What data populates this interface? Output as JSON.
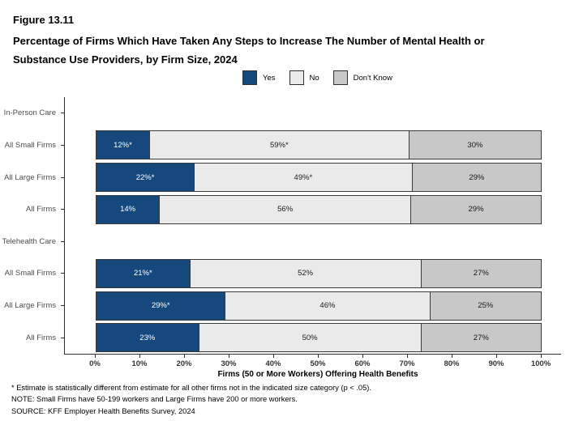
{
  "title": "Figure 13.11",
  "subtitle_line1": "Percentage of Firms Which Have Taken Any Steps to Increase The Number of Mental Health or",
  "subtitle_line2": "Substance Use Providers, by Firm Size, 2024",
  "legend": [
    {
      "label": "Yes",
      "color": "#15497E"
    },
    {
      "label": "No",
      "color": "#EAEAEA"
    },
    {
      "label": "Don't Know",
      "color": "#C8C8C8"
    }
  ],
  "chart_data": {
    "type": "bar",
    "orientation": "horizontal",
    "stacked": true,
    "series": [
      "Yes",
      "No",
      "Don't Know"
    ],
    "categories": [
      "In-Person Care",
      "All Small Firms",
      "All Large Firms",
      "All Firms",
      "Telehealth Care",
      "All Small Firms",
      "All Large Firms",
      "All Firms"
    ],
    "rows": [
      {
        "category": "In-Person Care",
        "header": true
      },
      {
        "category": "All Small Firms",
        "values": [
          12,
          59,
          30
        ],
        "labels": [
          "12%*",
          "59%*",
          "30%"
        ]
      },
      {
        "category": "All Large Firms",
        "values": [
          22,
          49,
          29
        ],
        "labels": [
          "22%*",
          "49%*",
          "29%"
        ]
      },
      {
        "category": "All Firms",
        "values": [
          14,
          56,
          29
        ],
        "labels": [
          "14%",
          "56%",
          "29%"
        ]
      },
      {
        "category": "Telehealth Care",
        "header": true
      },
      {
        "category": "All Small Firms",
        "values": [
          21,
          52,
          27
        ],
        "labels": [
          "21%*",
          "52%",
          "27%"
        ]
      },
      {
        "category": "All Large Firms",
        "values": [
          29,
          46,
          25
        ],
        "labels": [
          "29%*",
          "46%",
          "25%"
        ]
      },
      {
        "category": "All Firms",
        "values": [
          23,
          50,
          27
        ],
        "labels": [
          "23%",
          "50%",
          "27%"
        ]
      }
    ],
    "x_ticks": [
      "0%",
      "10%",
      "20%",
      "30%",
      "40%",
      "50%",
      "60%",
      "70%",
      "80%",
      "90%",
      "100%"
    ],
    "xlim": [
      0,
      100
    ],
    "xlabel": "Firms (50 or More Workers) Offering Health Benefits",
    "legend_position": "top-center",
    "grid": false
  },
  "footnotes": [
    "* Estimate is statistically different from estimate for all other firms not in the indicated size category (p < .05).",
    "NOTE: Small Firms have 50-199 workers and Large Firms have 200 or more workers.",
    "SOURCE: KFF Employer Health Benefits Survey, 2024"
  ],
  "colors": {
    "yes": "#15497E",
    "no": "#EAEAEA",
    "dont_know": "#C8C8C8",
    "bar_border": "#3A3A3A",
    "axis": "#2E2E2E",
    "y_label_text": "#4D4D4D",
    "bar_label_on_blue": "#FFFFFF",
    "bar_label_on_gray": "#1A1A1A"
  }
}
